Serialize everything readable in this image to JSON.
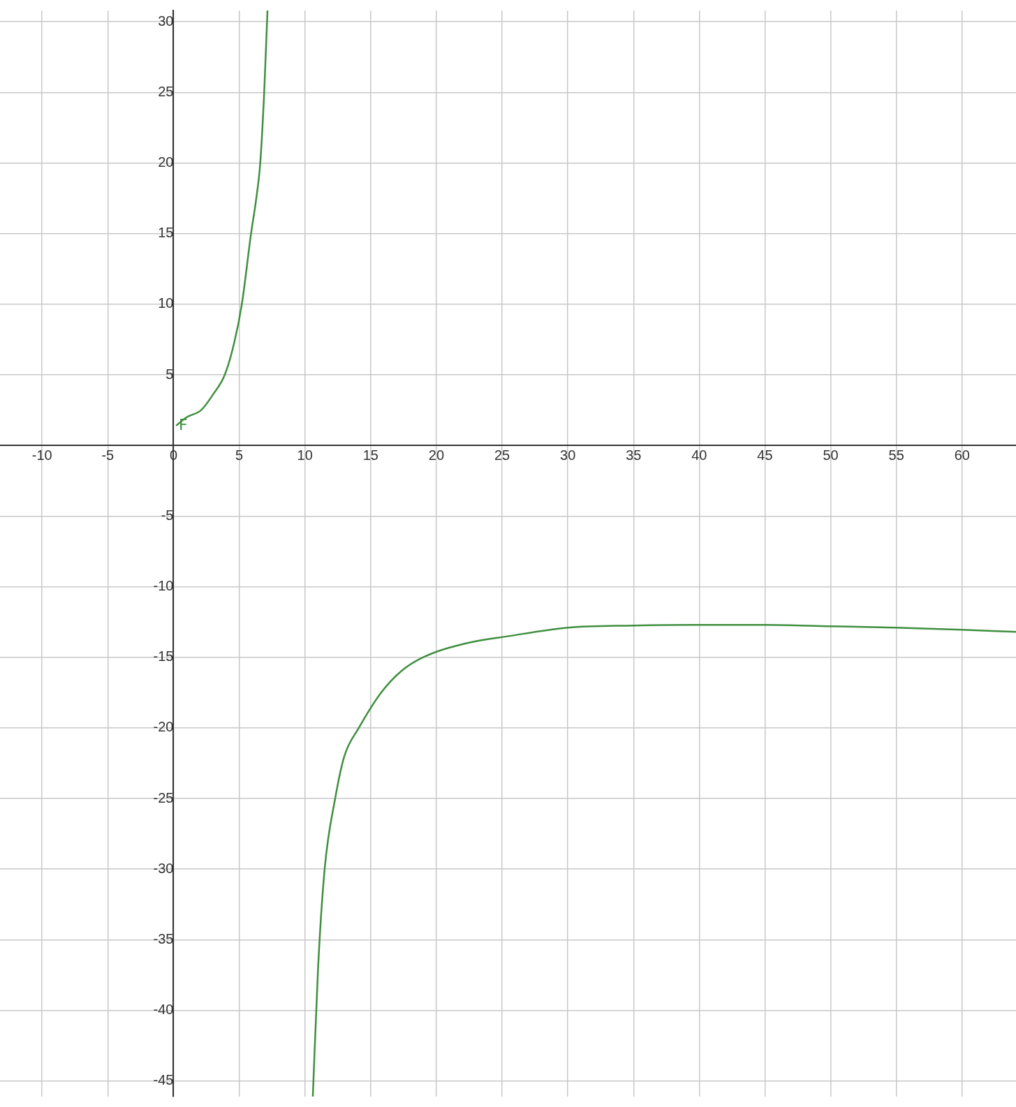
{
  "chart_data": {
    "type": "line",
    "xlim": [
      -13.2,
      64.1
    ],
    "ylim": [
      -46.1,
      30.8
    ],
    "xticks": [
      -10,
      -5,
      0,
      5,
      10,
      15,
      20,
      25,
      30,
      35,
      40,
      45,
      50,
      55,
      60
    ],
    "yticks": [
      -45,
      -40,
      -35,
      -30,
      -25,
      -20,
      -15,
      -10,
      -5,
      5,
      10,
      15,
      20,
      25,
      30
    ],
    "grid": true,
    "legend": false,
    "marker": "none",
    "line_style": "solid",
    "annotations": [
      {
        "text": "F",
        "x": 0.3,
        "y": 1.4
      }
    ],
    "series": [
      {
        "color": "#3f8f3f",
        "x": [
          0.2,
          1,
          2.1,
          3,
          3.9,
          4.6,
          5.2,
          5.9,
          6.3,
          6.6,
          6.9,
          7.15
        ],
        "values": [
          1.4,
          2,
          2.5,
          3.6,
          5,
          7.2,
          10,
          15,
          17.5,
          20,
          25,
          30.8
        ]
      },
      {
        "color": "#3f8f3f",
        "x": [
          10.6,
          11,
          11.5,
          12.3,
          13,
          14.1,
          15.8,
          17.3,
          19,
          22.3,
          25.5,
          30,
          35,
          39.5,
          45,
          50,
          55,
          60,
          64.1
        ],
        "values": [
          -46.1,
          -37,
          -30,
          -25,
          -22,
          -20,
          -17.5,
          -16,
          -15,
          -14,
          -13.5,
          -12.9,
          -12.75,
          -12.7,
          -12.7,
          -12.8,
          -12.9,
          -13.05,
          -13.2
        ]
      }
    ]
  }
}
